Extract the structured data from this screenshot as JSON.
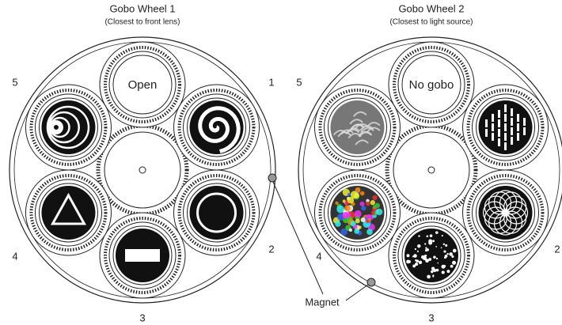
{
  "wheels": [
    {
      "title": "Gobo Wheel 1",
      "subtitle": "(Closest to front lens)",
      "open_label": "Open",
      "slot_numbers": [
        "1",
        "2",
        "3",
        "4",
        "5"
      ]
    },
    {
      "title": "Gobo Wheel 2",
      "subtitle": "(Closest to light source)",
      "open_label": "No gobo",
      "slot_numbers": [
        "5",
        "4",
        "3",
        "2"
      ]
    }
  ],
  "magnet_label": "Magnet"
}
